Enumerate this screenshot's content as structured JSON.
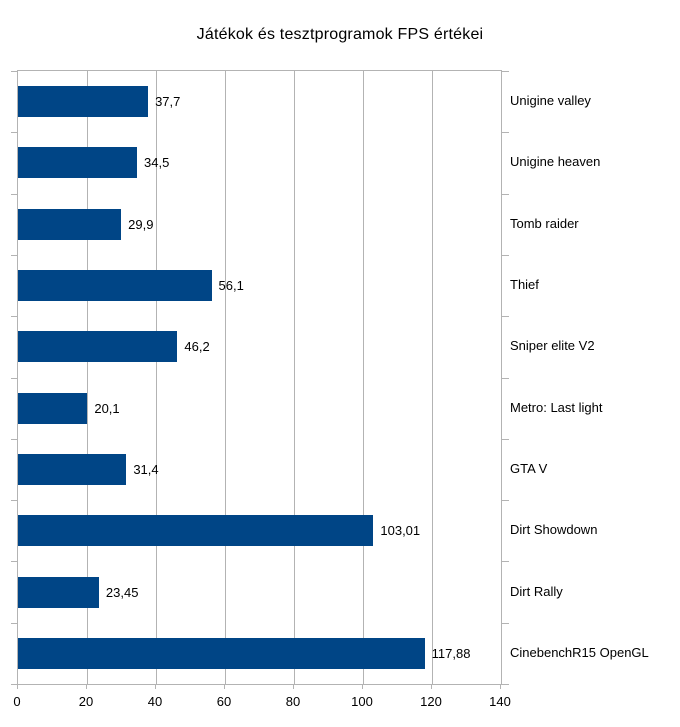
{
  "chart_data": {
    "type": "bar",
    "orientation": "horizontal",
    "title": "Játékok és tesztprogramok FPS értékei",
    "categories": [
      "Unigine valley",
      "Unigine heaven",
      "Tomb raider",
      "Thief",
      "Sniper elite V2",
      "Metro: Last light",
      "GTA V",
      "Dirt Showdown",
      "Dirt Rally",
      "CinebenchR15 OpenGL"
    ],
    "values": [
      37.7,
      34.5,
      29.9,
      56.1,
      46.2,
      20.1,
      31.4,
      103.01,
      23.45,
      117.88
    ],
    "value_labels": [
      "37,7",
      "34,5",
      "29,9",
      "56,1",
      "46,2",
      "20,1",
      "31,4",
      "103,01",
      "23,45",
      "117,88"
    ],
    "xlabel": "",
    "ylabel": "",
    "xlim": [
      0,
      140
    ],
    "x_ticks": [
      0,
      20,
      40,
      60,
      80,
      100,
      120,
      140
    ],
    "x_tick_labels": [
      "0",
      "20",
      "40",
      "60",
      "80",
      "100",
      "120",
      "140"
    ],
    "grid": "vertical",
    "legend": "none",
    "bar_color": "#004586",
    "gridline_color": "#b3b3b3",
    "text_color": "#000000",
    "background_color": "#ffffff"
  }
}
